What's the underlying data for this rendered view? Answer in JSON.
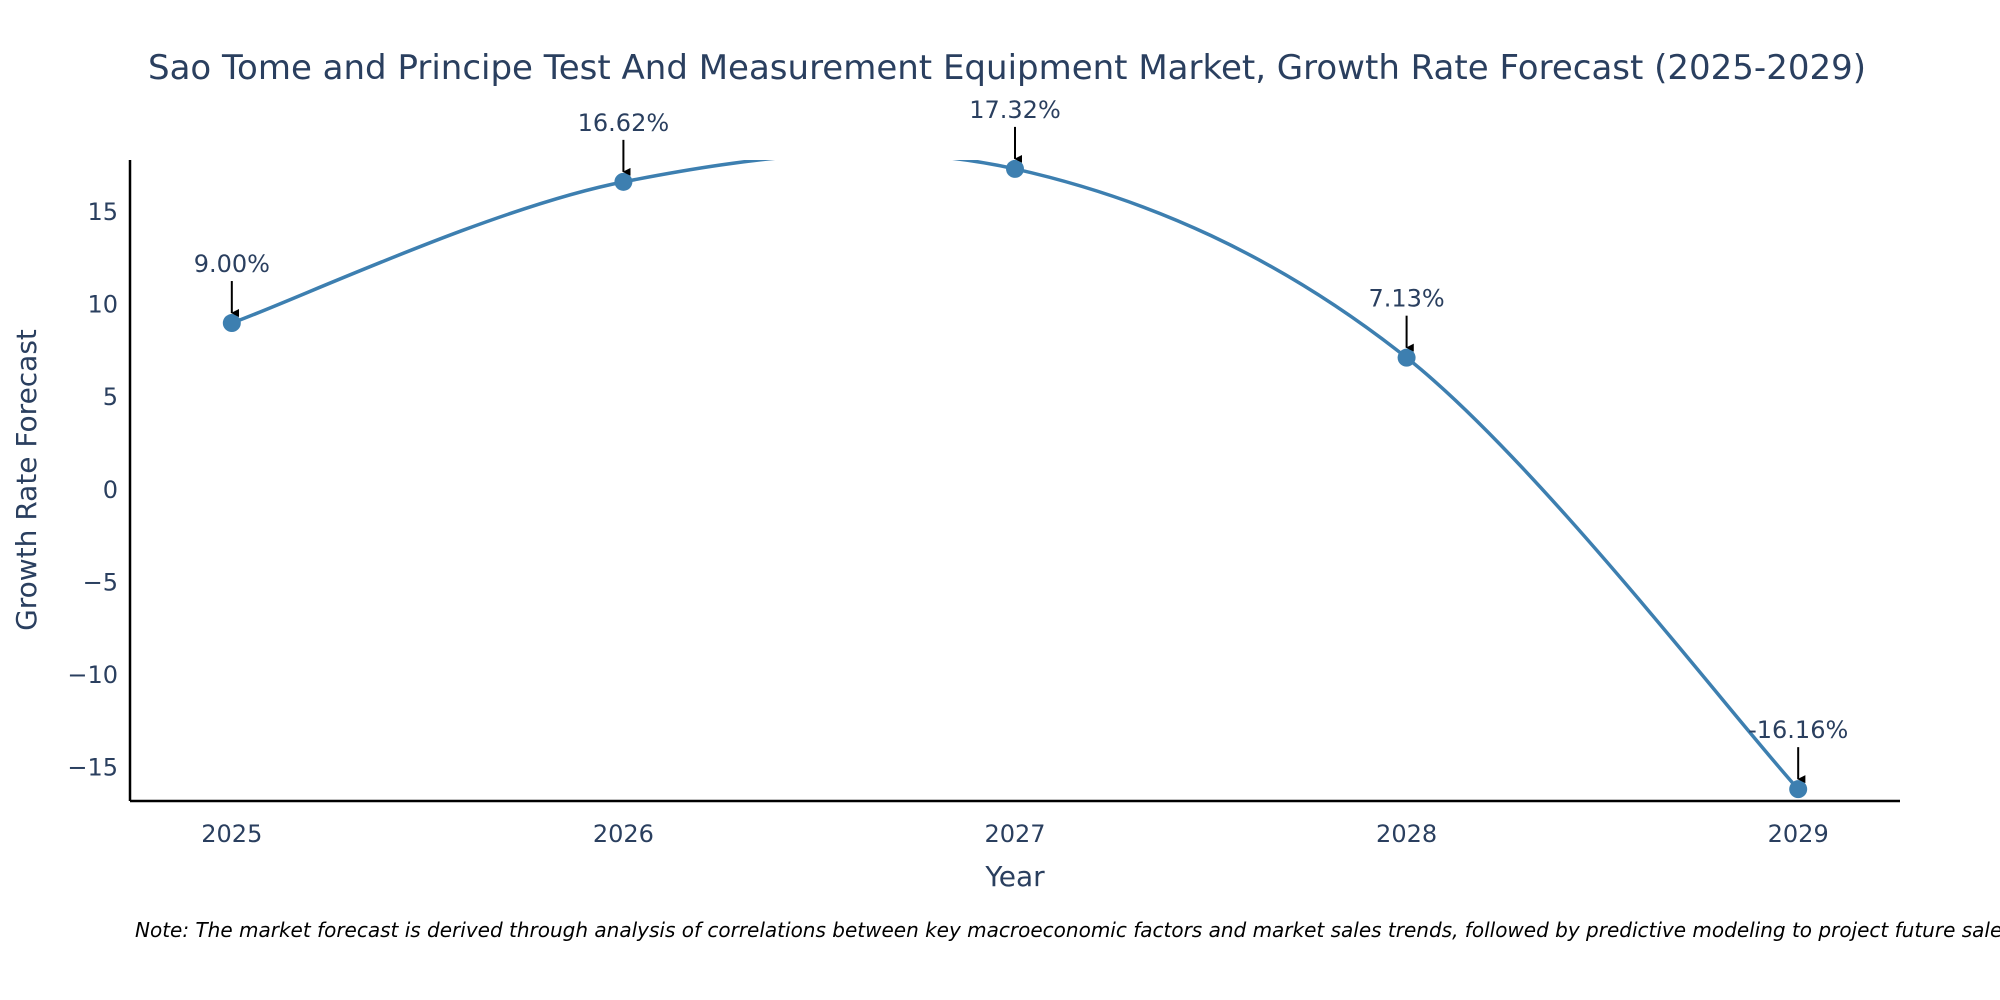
{
  "chart_data": {
    "type": "line",
    "title": "Sao Tome and Principe Test And Measurement Equipment Market, Growth Rate Forecast (2025-2029)",
    "xlabel": "Year",
    "ylabel": "Growth Rate Forecast",
    "categories": [
      "2025",
      "2026",
      "2027",
      "2028",
      "2029"
    ],
    "x": [
      2025,
      2026,
      2027,
      2028,
      2029
    ],
    "values": [
      9.0,
      16.62,
      17.32,
      7.13,
      -16.16
    ],
    "labels": [
      "9.00%",
      "16.62%",
      "17.32%",
      "7.13%",
      "-16.16%"
    ],
    "yticks": [
      15,
      10,
      5,
      0,
      -5,
      -10,
      -15
    ],
    "ytick_labels": [
      "15",
      "10",
      "5",
      "0",
      "−5",
      "−10",
      "−15"
    ],
    "ylim": [
      -16.8,
      17.8
    ],
    "xlim": [
      2024.74,
      2029.26
    ],
    "series_color": "#3d7fb0",
    "grid": false,
    "legend": "none"
  },
  "note": "Note: The market forecast is derived through analysis of correlations between key macroeconomic factors and market sales trends, followed by predictive modeling to project future sales."
}
